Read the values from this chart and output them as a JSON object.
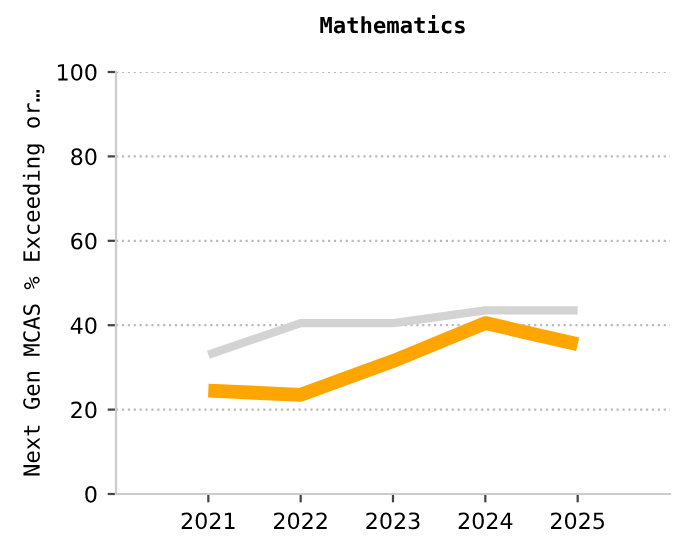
{
  "chart_data": {
    "type": "line",
    "title": "Mathematics",
    "ylabel": "Next Gen MCAS % Exceeding or…",
    "categories": [
      "2021",
      "2022",
      "2023",
      "2024",
      "2025"
    ],
    "series": [
      {
        "color": "#d3d3d3",
        "values": [
          33,
          40.5,
          40.5,
          43.5,
          43.5
        ]
      },
      {
        "color": "#ffa500",
        "values": [
          24.5,
          23.5,
          31.5,
          40.5,
          35.5
        ]
      }
    ],
    "ylim": [
      0,
      100
    ],
    "yticks": [
      0,
      20,
      40,
      60,
      80,
      100
    ],
    "grid": "y",
    "legend": false,
    "marker": "none",
    "line_style": "solid"
  }
}
